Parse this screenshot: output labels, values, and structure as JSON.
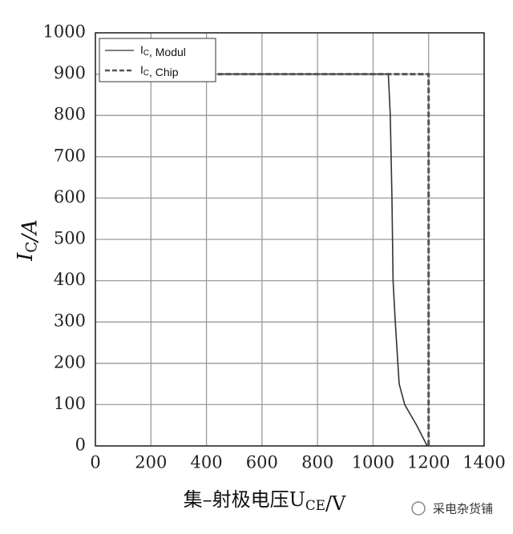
{
  "chart_data": {
    "type": "line",
    "xlabel": "集–射极电压UCE/V",
    "ylabel": "IC/A",
    "xlim": [
      0,
      1400
    ],
    "xticks": [
      0,
      200,
      400,
      600,
      800,
      1000,
      1200,
      1400
    ],
    "ylim": [
      0,
      1000
    ],
    "yticks": [
      0,
      100,
      200,
      300,
      400,
      500,
      600,
      700,
      800,
      900,
      1000
    ],
    "grid": true,
    "legend": "upper left",
    "series": [
      {
        "name": "IC, Modul",
        "color": "#333333",
        "style": "solid",
        "x": [
          440,
          1055,
          1062,
          1068,
          1072,
          1080,
          1094,
          1114,
          1157,
          1195
        ],
        "values": [
          900,
          900,
          800,
          600,
          400,
          300,
          150,
          100,
          50,
          0
        ]
      },
      {
        "name": "IC, Chip",
        "color": "#555555",
        "style": "dashed",
        "x": [
          440,
          1200,
          1200
        ],
        "values": [
          900,
          900,
          0
        ]
      }
    ],
    "watermark": "采电杂货铺"
  }
}
